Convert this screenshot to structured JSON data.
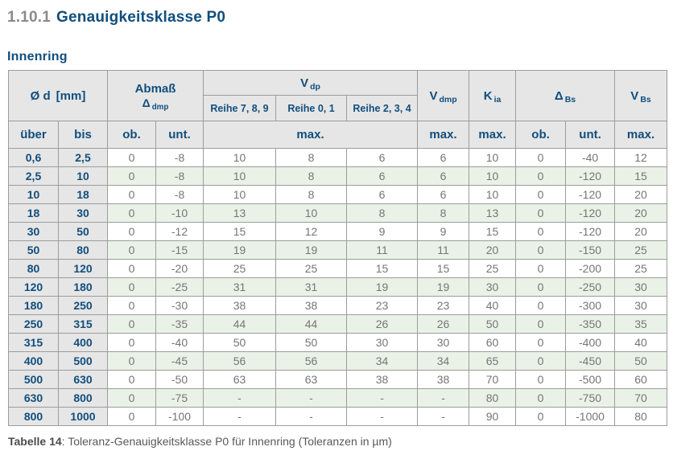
{
  "page": {
    "section_number": "1.10.1",
    "section_title": "Genauigkeitsklasse P0",
    "subtitle": "Innenring",
    "caption": {
      "label": "Tabelle 14",
      "text": ": Toleranz-Genauigkeitsklasse P0 für Innenring (Toleranzen in µm)"
    }
  },
  "colors": {
    "accent_blue": "#114e7d",
    "header_bg": "#e6e6e6",
    "stripe_green": "#eaf2e8",
    "border_gray": "#9c9c9c",
    "value_gray": "#757575",
    "section_number_gray": "#8a8a8a",
    "caption_gray": "#595959"
  },
  "table": {
    "headers": {
      "od_symbol": "Ø d",
      "od_unit": "[mm]",
      "abmass_line1": "Abmaß",
      "abmass_base": "Δ",
      "abmass_sub": "dmp",
      "vdp_base": "V",
      "vdp_sub": "dp",
      "vdmp_base": "V",
      "vdmp_sub": "dmp",
      "kia_base": "K",
      "kia_sub": "ia",
      "dbs_base": "Δ",
      "dbs_sub": "Bs",
      "vbs_base": "V",
      "vbs_sub": "Bs",
      "reihe": [
        "Reihe 7, 8, 9",
        "Reihe 0, 1",
        "Reihe 2, 3, 4"
      ],
      "ueber": "über",
      "bis": "bis",
      "ob": "ob.",
      "unt": "unt.",
      "max": "max."
    },
    "columns": [
      "über",
      "bis",
      "Abmaß ob.",
      "Abmaß unt.",
      "Vdp Reihe 7,8,9 max.",
      "Vdp Reihe 0,1 max.",
      "Vdp Reihe 2,3,4 max.",
      "Vdmp max.",
      "Kia max.",
      "ΔBs ob.",
      "ΔBs unt.",
      "VBs max."
    ],
    "rows": [
      [
        "0,6",
        "2,5",
        "0",
        "-8",
        "10",
        "8",
        "6",
        "6",
        "10",
        "0",
        "-40",
        "12"
      ],
      [
        "2,5",
        "10",
        "0",
        "-8",
        "10",
        "8",
        "6",
        "6",
        "10",
        "0",
        "-120",
        "15"
      ],
      [
        "10",
        "18",
        "0",
        "-8",
        "10",
        "8",
        "6",
        "6",
        "10",
        "0",
        "-120",
        "20"
      ],
      [
        "18",
        "30",
        "0",
        "-10",
        "13",
        "10",
        "8",
        "8",
        "13",
        "0",
        "-120",
        "20"
      ],
      [
        "30",
        "50",
        "0",
        "-12",
        "15",
        "12",
        "9",
        "9",
        "15",
        "0",
        "-120",
        "20"
      ],
      [
        "50",
        "80",
        "0",
        "-15",
        "19",
        "19",
        "11",
        "11",
        "20",
        "0",
        "-150",
        "25"
      ],
      [
        "80",
        "120",
        "0",
        "-20",
        "25",
        "25",
        "15",
        "15",
        "25",
        "0",
        "-200",
        "25"
      ],
      [
        "120",
        "180",
        "0",
        "-25",
        "31",
        "31",
        "19",
        "19",
        "30",
        "0",
        "-250",
        "30"
      ],
      [
        "180",
        "250",
        "0",
        "-30",
        "38",
        "38",
        "23",
        "23",
        "40",
        "0",
        "-300",
        "30"
      ],
      [
        "250",
        "315",
        "0",
        "-35",
        "44",
        "44",
        "26",
        "26",
        "50",
        "0",
        "-350",
        "35"
      ],
      [
        "315",
        "400",
        "0",
        "-40",
        "50",
        "50",
        "30",
        "30",
        "60",
        "0",
        "-400",
        "40"
      ],
      [
        "400",
        "500",
        "0",
        "-45",
        "56",
        "56",
        "34",
        "34",
        "65",
        "0",
        "-450",
        "50"
      ],
      [
        "500",
        "630",
        "0",
        "-50",
        "63",
        "63",
        "38",
        "38",
        "70",
        "0",
        "-500",
        "60"
      ],
      [
        "630",
        "800",
        "0",
        "-75",
        "-",
        "-",
        "-",
        "-",
        "80",
        "0",
        "-750",
        "70"
      ],
      [
        "800",
        "1000",
        "0",
        "-100",
        "-",
        "-",
        "-",
        "-",
        "90",
        "0",
        "-1000",
        "80"
      ]
    ]
  }
}
